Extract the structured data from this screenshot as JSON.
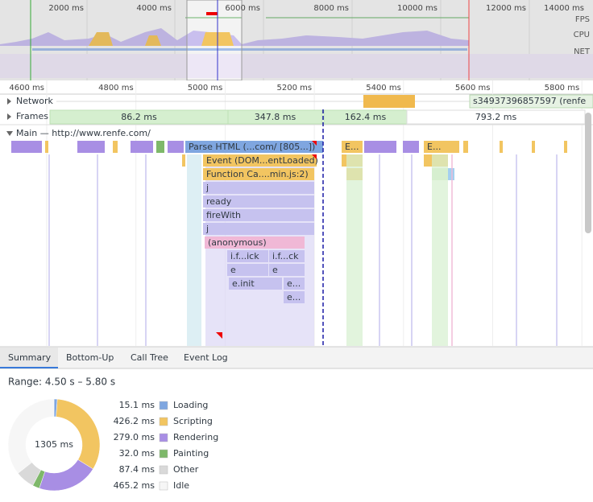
{
  "overview": {
    "ticks": [
      "2000 ms",
      "4000 ms",
      "6000 ms",
      "8000 ms",
      "10000 ms",
      "12000 ms",
      "14000 ms"
    ],
    "tracks": [
      "FPS",
      "CPU",
      "NET"
    ]
  },
  "ruler": [
    "4600 ms",
    "4800 ms",
    "5000 ms",
    "5200 ms",
    "5400 ms",
    "5600 ms",
    "5800 ms"
  ],
  "tracks": {
    "network": {
      "label": "Network",
      "request": "s34937396857597 (renfe"
    },
    "frames": {
      "label": "Frames",
      "items": [
        "86.2 ms",
        "347.8 ms",
        "162.4 ms",
        "793.2 ms"
      ]
    },
    "main": {
      "label": "Main — http://www.renfe.com/",
      "events": [
        "Parse HTML (...com/ [805...])",
        "E...",
        "E...",
        "Event (DOM...entLoaded)",
        "Function Ca....min.js:2)",
        "j",
        "ready",
        "fireWith",
        "j",
        "(anonymous)",
        "i.f...ick",
        "i.f...ck",
        "e",
        "e",
        "e.init",
        "e...",
        "e..."
      ]
    }
  },
  "tabs": [
    "Summary",
    "Bottom-Up",
    "Call Tree",
    "Event Log"
  ],
  "summary": {
    "range": "Range: 4.50 s – 5.80 s",
    "total": "1305 ms",
    "items": [
      {
        "name": "Loading",
        "value": 15.1,
        "label": "15.1 ms",
        "color": "#7fa6e0"
      },
      {
        "name": "Scripting",
        "value": 426.2,
        "label": "426.2 ms",
        "color": "#f2c561"
      },
      {
        "name": "Rendering",
        "value": 279.0,
        "label": "279.0 ms",
        "color": "#a88ee4"
      },
      {
        "name": "Painting",
        "value": 32.0,
        "label": "32.0 ms",
        "color": "#7eb86a"
      },
      {
        "name": "Other",
        "value": 87.4,
        "label": "87.4 ms",
        "color": "#d9d9d9"
      },
      {
        "name": "Idle",
        "value": 465.2,
        "label": "465.2 ms",
        "color": "#f6f6f6"
      }
    ]
  }
}
